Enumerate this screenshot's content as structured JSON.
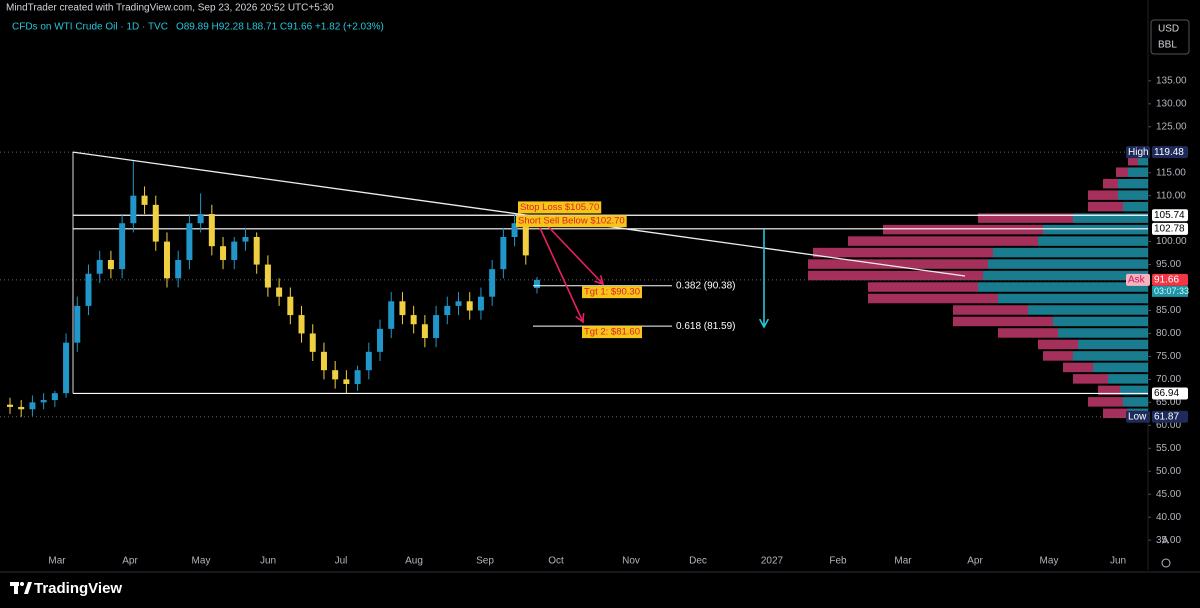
{
  "header": {
    "credit": "MindTrader created with TradingView.com, Sep 23, 2026 20:52 UTC+5:30",
    "symbol": "CFDs on WTI Crude Oil · 1D · TVC",
    "ohlc": "O89.89  H92.28  L88.71  C91.66  +1.82 (+2.03%)"
  },
  "units": [
    "USD",
    "BBL"
  ],
  "footer": {
    "brand": "TradingView",
    "scale_mode": "A"
  },
  "chart_data": {
    "type": "candlestick",
    "x_labels": [
      "Mar",
      "Apr",
      "May",
      "Jun",
      "Jul",
      "Aug",
      "Sep",
      "Oct",
      "Nov",
      "Dec",
      "2027",
      "Feb",
      "Mar",
      "Apr",
      "May",
      "Jun"
    ],
    "open": [
      64.5,
      64,
      63.5,
      65,
      65.5,
      67,
      78,
      86,
      93,
      96,
      94,
      104,
      110,
      108,
      100,
      92,
      96,
      104,
      106,
      99,
      96,
      100,
      101,
      95,
      90,
      88,
      84,
      80,
      76,
      72,
      70,
      69,
      72,
      76,
      81,
      87,
      84,
      82,
      79,
      84,
      86,
      87,
      85,
      88,
      94,
      101,
      104,
      89.89
    ],
    "high": [
      66,
      65.5,
      66.5,
      67,
      67.5,
      80,
      88,
      95,
      98,
      98,
      106,
      117.5,
      112,
      110,
      102,
      98,
      106,
      110.5,
      108,
      101,
      101,
      103,
      102,
      97,
      92,
      90,
      86,
      82,
      78,
      74,
      72,
      73,
      78,
      83,
      89,
      89,
      86,
      84,
      86,
      88,
      89,
      89,
      90,
      96,
      103,
      106,
      105,
      92.28
    ],
    "low": [
      62.5,
      61.87,
      62,
      63.5,
      64,
      66,
      76,
      84,
      91,
      92,
      92,
      102,
      106,
      98,
      90,
      90,
      94,
      102,
      97,
      94,
      94,
      98,
      93,
      88,
      86,
      82,
      78,
      74,
      70,
      68,
      67,
      67.5,
      70,
      74,
      79,
      82,
      80,
      77,
      77,
      82,
      84,
      83,
      83,
      86,
      92,
      99,
      95,
      88.71
    ],
    "close": [
      64,
      63.5,
      65,
      65.5,
      67,
      78,
      86,
      93,
      96,
      94,
      104,
      110,
      108,
      100,
      92,
      96,
      104,
      106,
      99,
      96,
      100,
      101,
      95,
      90,
      88,
      84,
      80,
      76,
      72,
      70,
      69,
      72,
      76,
      81,
      87,
      84,
      82,
      79,
      84,
      86,
      87,
      85,
      88,
      94,
      101,
      104,
      97,
      91.66
    ],
    "up_color": "#2196c8",
    "down_color": "#f0d040",
    "ylim": [
      28.5,
      152.6
    ],
    "yticks": [
      {
        "value": 35,
        "label": "35.00"
      },
      {
        "value": 40,
        "label": "40.00"
      },
      {
        "value": 45,
        "label": "45.00"
      },
      {
        "value": 50,
        "label": "50.00"
      },
      {
        "value": 55,
        "label": "55.00"
      },
      {
        "value": 60,
        "label": "60.00"
      },
      {
        "value": 65,
        "label": "65.00"
      },
      {
        "value": 70,
        "label": "70.00"
      },
      {
        "value": 75,
        "label": "75.00"
      },
      {
        "value": 80,
        "label": "80.00"
      },
      {
        "value": 85,
        "label": "85.00"
      },
      {
        "value": 95,
        "label": "95.00"
      },
      {
        "value": 100,
        "label": "100.00"
      },
      {
        "value": 110,
        "label": "110.00"
      },
      {
        "value": 115,
        "label": "115.00"
      },
      {
        "value": 125,
        "label": "125.00"
      },
      {
        "value": 130,
        "label": "130.00"
      },
      {
        "value": 135,
        "label": "135.00"
      }
    ],
    "price_tags": [
      {
        "name": "High",
        "value": 119.48,
        "color": "#1e2a5a"
      },
      {
        "value": 105.74,
        "color": "#ffffff"
      },
      {
        "value": 102.78,
        "color": "#ffffff"
      },
      {
        "name": "Ask",
        "value": 91.66,
        "color": "#f23645"
      },
      {
        "value": 66.94,
        "color": "#ffffff"
      },
      {
        "name": "Low",
        "value": 61.87,
        "color": "#1e2a5a"
      }
    ],
    "countdown": "03:07:33",
    "trendline": [
      119.48,
      92.5
    ],
    "fib_levels": [
      {
        "label": "0.382 (90.38)",
        "value": 90.38
      },
      {
        "label": "0.618 (81.59)",
        "value": 81.59
      }
    ],
    "annotations": [
      {
        "text": "Stop Loss $105.70",
        "value": 105.7
      },
      {
        "text": "Short Sell Below $102.70",
        "value": 102.7
      },
      {
        "text": "Tgt 1: $90.30",
        "value": 90.3
      },
      {
        "text": "Tgt 2: $81.60",
        "value": 81.6
      }
    ],
    "annotation_bg": "#f5c518",
    "annotation_color": "#e0202a",
    "volume_profile": {
      "prices": [
        117.5,
        115,
        112.5,
        110,
        107.5,
        105,
        102.5,
        100,
        97.5,
        95,
        92.5,
        90,
        87.5,
        85,
        82.5,
        80,
        77.5,
        75,
        72.5,
        70,
        67.5,
        65,
        62.5
      ],
      "buy": [
        10,
        20,
        30,
        30,
        25,
        75,
        105,
        110,
        155,
        160,
        165,
        170,
        150,
        120,
        95,
        90,
        70,
        75,
        55,
        40,
        28,
        25,
        20
      ],
      "sell": [
        10,
        12,
        15,
        30,
        35,
        95,
        160,
        190,
        180,
        180,
        175,
        110,
        130,
        75,
        100,
        60,
        40,
        30,
        30,
        35,
        22,
        35,
        25
      ],
      "buy_color": "#1f93a8",
      "sell_color": "#c2386b"
    }
  }
}
